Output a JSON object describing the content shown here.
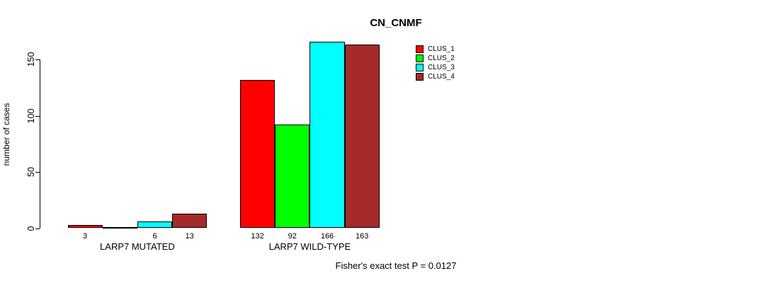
{
  "chart_data": {
    "type": "bar",
    "title": "CN_CNMF",
    "ylabel": "number of cases",
    "xlabel": "",
    "ylim": [
      0,
      166
    ],
    "yticks": [
      0,
      50,
      100,
      150
    ],
    "grid": false,
    "legend_position": "top-right-inside",
    "categories": [
      "LARP7 MUTATED",
      "LARP7 WILD-TYPE"
    ],
    "series": [
      {
        "name": "CLUS_1",
        "color": "#ff0000",
        "values": [
          3,
          132
        ]
      },
      {
        "name": "CLUS_2",
        "color": "#00ff00",
        "values": [
          0,
          92
        ]
      },
      {
        "name": "CLUS_3",
        "color": "#00ffff",
        "values": [
          6,
          166
        ]
      },
      {
        "name": "CLUS_4",
        "color": "#a52a2a",
        "values": [
          13,
          163
        ]
      }
    ],
    "bar_value_labels": [
      [
        "3",
        "",
        "6",
        "13"
      ],
      [
        "132",
        "92",
        "166",
        "163"
      ]
    ],
    "annotation": "Fisher's exact test P = 0.0127"
  }
}
